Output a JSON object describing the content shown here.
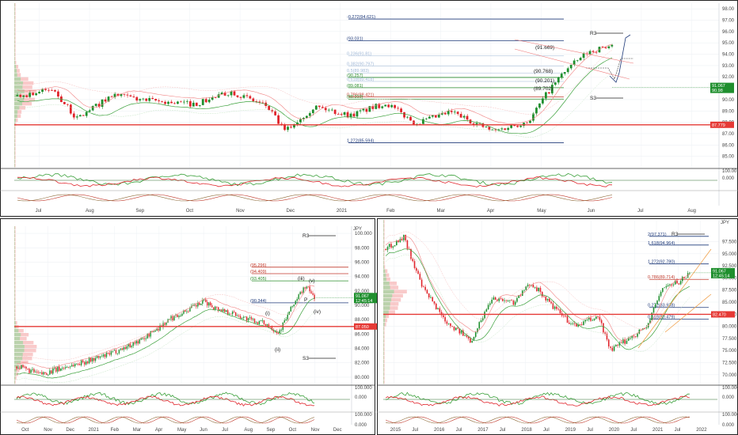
{
  "colors": {
    "bull": "#1f8f2e",
    "bear": "#e0242b",
    "fib_blue": "#1f3a7a",
    "fib_green": "#2f8f2f",
    "fib_red": "#c0392b",
    "pivot_red": "#e53935",
    "mauve": "#d98aa6",
    "grid": "#eef1f5",
    "panel_border": "#222222"
  },
  "panels": {
    "top": {
      "name": "weekly-view",
      "ylim": [
        84.0,
        98.5
      ],
      "price_tag": "91.067",
      "price_tag_sub": "90.98",
      "pivot_tag": "87.779",
      "y_ticks": [
        "98.00",
        "97.00",
        "96.00",
        "95.00",
        "94.00",
        "93.00",
        "92.00",
        "91.00",
        "90.00",
        "89.00",
        "88.00",
        "87.00",
        "86.00",
        "85.00"
      ],
      "x_ticks": [
        "Jul",
        "Aug",
        "Sep",
        "Oct",
        "Nov",
        "Dec",
        "2021",
        "Feb",
        "Mar",
        "Apr",
        "May",
        "Jun",
        "Jul",
        "Aug"
      ],
      "levels": [
        {
          "label": "-0.272(94.621)",
          "kind": "blue",
          "price": 97.1
        },
        {
          "label": "(93.031)",
          "kind": "dark",
          "price": 95.2
        },
        {
          "label": "0.236(91.81)",
          "kind": "light",
          "price": 93.85
        },
        {
          "label": "0.382(90.797)",
          "kind": "light",
          "price": 92.95
        },
        {
          "label": "0.5(89.983)",
          "kind": "light",
          "price": 92.35
        },
        {
          "label": "(90.257)",
          "kind": "green",
          "price": 91.95
        },
        {
          "label": "0.618(89.418)",
          "kind": "light",
          "price": 91.6
        },
        {
          "label": "(89.081)",
          "kind": "green",
          "price": 91.05
        },
        {
          "label": "0.786(88.421)",
          "kind": "red",
          "price": 90.25
        },
        {
          "label": "(88.319)",
          "kind": "green",
          "price": 90.05
        },
        {
          "label": "1.272(85.594)",
          "kind": "blue",
          "price": 86.2
        }
      ],
      "annotations": [
        "R3",
        "(91.669)",
        "(90.768)",
        "(90.201)",
        "(89.702)",
        "S3"
      ]
    },
    "bottom_left": {
      "name": "daily-view",
      "ylim": [
        79.0,
        101.0
      ],
      "price_tag": "91.067",
      "price_tag_sub": "12:45:14",
      "pivot_tag": "87.050",
      "y_ticks": [
        "100.000",
        "98.000",
        "96.000",
        "94.000",
        "92.000",
        "90.000",
        "88.000",
        "86.000",
        "84.000",
        "82.000",
        "80.000"
      ],
      "x_ticks": [
        "Oct",
        "Nov",
        "Dec",
        "2021",
        "Feb",
        "Mar",
        "Apr",
        "May",
        "Jun",
        "Jul",
        "Aug",
        "Sep",
        "Oct",
        "Nov",
        "Dec"
      ],
      "levels": [
        {
          "label": "(95.296)",
          "kind": "red",
          "price": 95.3
        },
        {
          "label": "(94.409)",
          "kind": "red",
          "price": 94.4
        },
        {
          "label": "(93.405)",
          "kind": "green",
          "price": 93.4
        },
        {
          "label": "(90.344)",
          "kind": "blue",
          "price": 90.34
        }
      ],
      "annotations": [
        "R3",
        "S3",
        "(i)",
        "(ii)",
        "(iii)",
        "(iv)",
        "(v)",
        "P"
      ],
      "unit": "JPY"
    },
    "bottom_right": {
      "name": "monthly-view",
      "ylim": [
        68.0,
        102.0
      ],
      "price_tag": "91.067",
      "price_tag_sub": "12:45:14",
      "pivot_tag": "82.470",
      "y_ticks": [
        "97.500",
        "95.000",
        "92.500",
        "90.000",
        "87.500",
        "85.000",
        "82.500",
        "80.000",
        "77.500",
        "75.000",
        "72.500",
        "70.000"
      ],
      "x_ticks": [
        "2015",
        "Jul",
        "2016",
        "Jul",
        "2017",
        "Jul",
        "2018",
        "Jul",
        "2019",
        "Jul",
        "2020",
        "Jul",
        "2021",
        "Jul",
        "2022"
      ],
      "levels": [
        {
          "label": "2(97.371)",
          "kind": "blue",
          "price": 98.6
        },
        {
          "label": "1.618(94.964)",
          "kind": "blue",
          "price": 96.8
        },
        {
          "label": "1.272(92.780)",
          "kind": "blue",
          "price": 92.9
        },
        {
          "label": "0.786(89.714)",
          "kind": "red",
          "price": 89.7
        },
        {
          "label": "0.272(83.938)",
          "kind": "blue",
          "price": 83.9
        },
        {
          "label": "0.618(80.479)",
          "kind": "blue",
          "price": 81.5
        }
      ],
      "annotations": [
        "R3"
      ],
      "unit": "JPY"
    }
  },
  "oscillators": {
    "top": {
      "ticks": [
        "100.00",
        "0.000"
      ]
    },
    "bottom_left": {
      "ticks": [
        "100.000",
        "0.000",
        "100.000",
        "0.000"
      ]
    },
    "bottom_right": {
      "ticks": [
        "100.000",
        "0.000",
        "100.000",
        "0.000"
      ]
    }
  },
  "chart_data": [
    {
      "type": "candlestick",
      "panel": "top",
      "ylim": [
        84.0,
        98.5
      ],
      "waypoints": [
        [
          0,
          90.3
        ],
        [
          0.06,
          90.9
        ],
        [
          0.1,
          88.3
        ],
        [
          0.16,
          90.4
        ],
        [
          0.22,
          89.9
        ],
        [
          0.3,
          89.6
        ],
        [
          0.36,
          90.7
        ],
        [
          0.42,
          89.4
        ],
        [
          0.45,
          87.2
        ],
        [
          0.5,
          89.4
        ],
        [
          0.56,
          88.6
        ],
        [
          0.62,
          89.7
        ],
        [
          0.67,
          87.9
        ],
        [
          0.73,
          88.9
        ],
        [
          0.8,
          87.2
        ],
        [
          0.86,
          88.1
        ],
        [
          0.89,
          90.5
        ],
        [
          0.92,
          92.5
        ],
        [
          0.96,
          94.2
        ],
        [
          1.0,
          94.8
        ]
      ]
    },
    {
      "type": "candlestick",
      "panel": "bottom_left",
      "ylim": [
        79.0,
        101.0
      ],
      "waypoints": [
        [
          0,
          81.5
        ],
        [
          0.08,
          80.4
        ],
        [
          0.18,
          81.6
        ],
        [
          0.3,
          83.0
        ],
        [
          0.42,
          85.2
        ],
        [
          0.52,
          88.2
        ],
        [
          0.58,
          89.5
        ],
        [
          0.63,
          90.5
        ],
        [
          0.67,
          89.6
        ],
        [
          0.72,
          89.0
        ],
        [
          0.78,
          88.0
        ],
        [
          0.84,
          87.4
        ],
        [
          0.88,
          86.2
        ],
        [
          0.93,
          90.2
        ],
        [
          0.97,
          92.7
        ],
        [
          1.0,
          91.1
        ]
      ]
    },
    {
      "type": "candlestick",
      "panel": "bottom_right",
      "ylim": [
        68.0,
        102.0
      ],
      "waypoints": [
        [
          0,
          96.0
        ],
        [
          0.06,
          98.5
        ],
        [
          0.12,
          88.0
        ],
        [
          0.2,
          81.0
        ],
        [
          0.28,
          77.0
        ],
        [
          0.35,
          86.0
        ],
        [
          0.42,
          85.0
        ],
        [
          0.48,
          89.0
        ],
        [
          0.55,
          84.0
        ],
        [
          0.62,
          80.0
        ],
        [
          0.7,
          82.0
        ],
        [
          0.74,
          75.0
        ],
        [
          0.8,
          77.5
        ],
        [
          0.86,
          80.0
        ],
        [
          0.91,
          88.0
        ],
        [
          0.96,
          89.0
        ],
        [
          1.0,
          91.0
        ]
      ]
    }
  ]
}
